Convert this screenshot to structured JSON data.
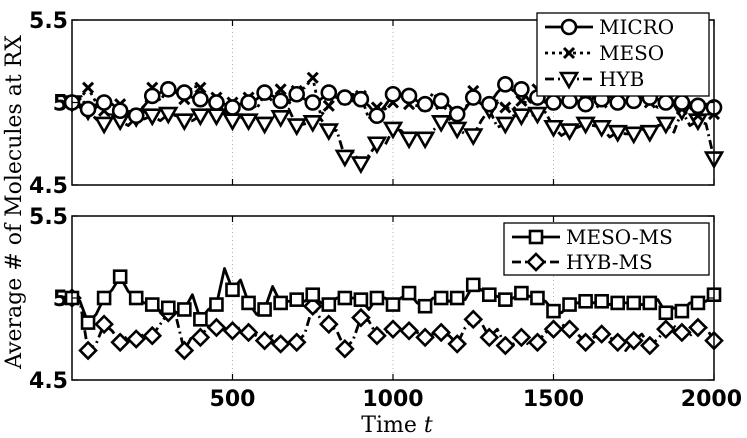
{
  "chart_data": {
    "shared": {
      "xlabel": "Time",
      "xlabel_var": "t",
      "ylabel": "Average # of Molecules at RX",
      "xlim": [
        0,
        2000
      ],
      "xticks": [
        500,
        1000,
        1500,
        2000
      ],
      "xtick_labels": [
        "500",
        "1000",
        "1500",
        "2000"
      ],
      "grid": "vertical-dotted"
    },
    "panels": [
      {
        "type": "line",
        "ylim": [
          4.5,
          5.5
        ],
        "yticks": [
          4.5,
          5,
          5.5
        ],
        "ytick_labels": [
          "4.5",
          "5",
          "5.5"
        ],
        "legend_position": "top-right",
        "x": [
          0,
          25,
          50,
          75,
          100,
          125,
          150,
          175,
          200,
          225,
          250,
          275,
          300,
          325,
          350,
          375,
          400,
          425,
          450,
          475,
          500,
          525,
          550,
          575,
          600,
          625,
          650,
          675,
          700,
          725,
          750,
          775,
          800,
          825,
          850,
          875,
          900,
          925,
          950,
          975,
          1000,
          1025,
          1050,
          1075,
          1100,
          1125,
          1150,
          1175,
          1200,
          1225,
          1250,
          1275,
          1300,
          1325,
          1350,
          1375,
          1400,
          1425,
          1450,
          1475,
          1500,
          1525,
          1550,
          1575,
          1600,
          1625,
          1650,
          1675,
          1700,
          1725,
          1750,
          1775,
          1800,
          1825,
          1850,
          1875,
          1900,
          1925,
          1950,
          1975,
          2000
        ],
        "series": [
          {
            "name": "MICRO",
            "style": "solid",
            "marker": "circle",
            "values": [
              5.0,
              4.97,
              4.96,
              4.97,
              5.0,
              4.99,
              4.95,
              4.94,
              4.92,
              4.98,
              5.04,
              5.06,
              5.08,
              5.06,
              5.06,
              5.03,
              5.02,
              5.01,
              5.0,
              4.99,
              4.97,
              4.99,
              5.0,
              5.02,
              5.06,
              5.04,
              5.01,
              5.01,
              5.05,
              5.02,
              5.0,
              5.02,
              5.06,
              5.03,
              5.03,
              5.05,
              5.02,
              4.98,
              4.92,
              4.98,
              5.05,
              5.04,
              5.04,
              5.01,
              4.99,
              5.0,
              5.01,
              4.98,
              4.93,
              4.96,
              5.03,
              4.99,
              4.99,
              5.06,
              5.11,
              5.07,
              5.08,
              5.01,
              5.03,
              5.0,
              5.0,
              5.01,
              5.01,
              5.01,
              4.99,
              5.03,
              5.02,
              5.04,
              5.0,
              5.01,
              5.01,
              5.03,
              5.03,
              5.02,
              5.0,
              5.01,
              5.0,
              5.0,
              4.98,
              4.99,
              4.97
            ]
          },
          {
            "name": "MESO",
            "style": "dotted",
            "marker": "x",
            "values": [
              5.0,
              5.02,
              5.09,
              5.0,
              4.95,
              4.91,
              4.99,
              4.94,
              4.93,
              4.98,
              5.09,
              5.01,
              5.09,
              5.06,
              5.02,
              5.1,
              5.09,
              5.01,
              5.03,
              4.93,
              5.0,
              4.99,
              5.03,
              4.96,
              5.05,
              5.01,
              5.08,
              4.99,
              5.07,
              5.09,
              5.15,
              4.92,
              4.98,
              5.05,
              5.02,
              5.01,
              5.04,
              4.9,
              4.97,
              4.96,
              5.0,
              5.05,
              4.99,
              4.98,
              4.98,
              5.06,
              4.99,
              4.97,
              4.93,
              4.96,
              5.07,
              4.98,
              4.99,
              5.01,
              4.97,
              4.96,
              5.01,
              4.99,
              5.08,
              5.0,
              5.03,
              5.08,
              5.02,
              5.0,
              5.01,
              5.01,
              5.0,
              5.05,
              5.0,
              5.02,
              5.02,
              5.02,
              5.0,
              4.97,
              5.0,
              5.05,
              4.96,
              4.97,
              4.92,
              4.93,
              4.93
            ]
          },
          {
            "name": "HYB",
            "style": "dashdot",
            "marker": "triangle-down",
            "values": [
              5.0,
              5.05,
              4.95,
              4.9,
              4.87,
              4.91,
              4.89,
              4.86,
              4.91,
              4.9,
              4.92,
              4.89,
              4.93,
              4.92,
              4.89,
              4.89,
              4.92,
              4.95,
              4.92,
              4.93,
              4.89,
              4.91,
              4.89,
              4.9,
              4.87,
              4.92,
              4.91,
              4.96,
              4.86,
              4.87,
              4.88,
              4.9,
              4.83,
              4.83,
              4.67,
              4.7,
              4.63,
              4.68,
              4.75,
              4.74,
              4.84,
              4.83,
              4.78,
              4.82,
              4.78,
              4.83,
              4.88,
              4.9,
              4.84,
              4.81,
              4.8,
              4.89,
              4.96,
              4.85,
              4.87,
              4.92,
              4.92,
              4.92,
              4.93,
              4.94,
              4.85,
              4.8,
              4.83,
              4.85,
              4.87,
              4.86,
              4.85,
              4.79,
              4.82,
              4.81,
              4.81,
              4.84,
              4.82,
              4.86,
              4.87,
              4.82,
              4.95,
              4.86,
              4.89,
              4.87,
              4.66
            ]
          }
        ]
      },
      {
        "type": "line",
        "ylim": [
          4.5,
          5.5
        ],
        "yticks": [
          4.5,
          5,
          5.5
        ],
        "ytick_labels": [
          "4.5",
          "5",
          "5.5"
        ],
        "legend_position": "top-right",
        "x": [
          0,
          25,
          50,
          75,
          100,
          125,
          150,
          175,
          200,
          225,
          250,
          275,
          300,
          325,
          350,
          375,
          400,
          425,
          450,
          475,
          500,
          525,
          550,
          575,
          600,
          625,
          650,
          675,
          700,
          725,
          750,
          775,
          800,
          825,
          850,
          875,
          900,
          925,
          950,
          975,
          1000,
          1025,
          1050,
          1075,
          1100,
          1125,
          1150,
          1175,
          1200,
          1225,
          1250,
          1275,
          1300,
          1325,
          1350,
          1375,
          1400,
          1425,
          1450,
          1475,
          1500,
          1525,
          1550,
          1575,
          1600,
          1625,
          1650,
          1675,
          1700,
          1725,
          1750,
          1775,
          1800,
          1825,
          1850,
          1875,
          1900,
          1925,
          1950,
          1975,
          2000
        ],
        "series": [
          {
            "name": "MESO-MS",
            "style": "solid",
            "marker": "square",
            "values": [
              5.0,
              4.98,
              4.85,
              4.9,
              5.0,
              5.05,
              5.13,
              5.04,
              5.0,
              4.97,
              4.96,
              4.92,
              4.94,
              4.91,
              4.93,
              5.02,
              4.87,
              4.93,
              4.96,
              5.18,
              5.05,
              5.11,
              4.97,
              4.9,
              4.93,
              5.07,
              4.97,
              4.98,
              4.99,
              4.98,
              5.02,
              4.97,
              4.96,
              5.0,
              5.0,
              5.0,
              4.99,
              4.93,
              5.0,
              5.0,
              4.96,
              5.0,
              5.03,
              4.97,
              4.95,
              5.0,
              5.0,
              4.98,
              5.0,
              4.99,
              5.08,
              5.05,
              5.02,
              5.01,
              4.99,
              5.0,
              5.03,
              5.01,
              5.0,
              4.98,
              4.92,
              4.91,
              4.96,
              4.97,
              4.98,
              4.97,
              4.98,
              4.96,
              4.97,
              4.97,
              4.97,
              4.96,
              4.97,
              4.99,
              4.91,
              4.94,
              4.92,
              4.97,
              4.97,
              4.98,
              5.02
            ]
          },
          {
            "name": "HYB-MS",
            "style": "dashdot",
            "marker": "diamond",
            "values": [
              5.0,
              4.98,
              4.68,
              4.72,
              4.84,
              4.8,
              4.73,
              4.77,
              4.75,
              4.78,
              4.77,
              4.84,
              4.91,
              4.88,
              4.68,
              4.77,
              4.76,
              4.83,
              4.82,
              4.81,
              4.8,
              4.82,
              4.79,
              4.77,
              4.74,
              4.77,
              4.72,
              4.71,
              4.73,
              4.78,
              4.95,
              4.87,
              4.84,
              4.8,
              4.69,
              4.74,
              4.88,
              4.86,
              4.77,
              4.79,
              4.81,
              4.8,
              4.8,
              4.79,
              4.76,
              4.78,
              4.79,
              4.77,
              4.72,
              4.82,
              4.87,
              4.85,
              4.76,
              4.81,
              4.71,
              4.72,
              4.76,
              4.71,
              4.73,
              4.79,
              4.81,
              4.84,
              4.81,
              4.78,
              4.73,
              4.76,
              4.78,
              4.76,
              4.73,
              4.68,
              4.74,
              4.78,
              4.71,
              4.75,
              4.81,
              4.83,
              4.79,
              4.77,
              4.82,
              4.82,
              4.74
            ]
          }
        ]
      }
    ]
  }
}
